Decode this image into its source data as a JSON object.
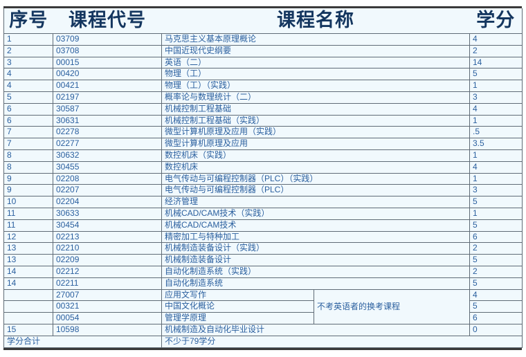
{
  "header": {
    "col_seq": "序号",
    "col_code": "课程代号",
    "col_name": "课程名称",
    "col_credit": "学分"
  },
  "rows": [
    {
      "seq": "1",
      "code": "03709",
      "name": "马克思主义基本原理概论",
      "credit": "4"
    },
    {
      "seq": "2",
      "code": "03708",
      "name": "中国近现代史纲要",
      "credit": "2"
    },
    {
      "seq": "3",
      "code": "00015",
      "name": "英语（二）",
      "credit": "14"
    },
    {
      "seq": "4",
      "code": "00420",
      "name": "物理（工）",
      "credit": "5"
    },
    {
      "seq": "4",
      "code": "00421",
      "name": "物理（工）（实践）",
      "credit": "1"
    },
    {
      "seq": "5",
      "code": "02197",
      "name": "概率论与数理统计（二）",
      "credit": "3"
    },
    {
      "seq": "6",
      "code": "30587",
      "name": "机械控制工程基础",
      "credit": "4"
    },
    {
      "seq": "6",
      "code": "30631",
      "name": "机械控制工程基础（实践）",
      "credit": "1"
    },
    {
      "seq": "7",
      "code": "02278",
      "name": "微型计算机原理及应用（实践）",
      "credit": ".5"
    },
    {
      "seq": "7",
      "code": "02277",
      "name": "微型计算机原理及应用",
      "credit": "3.5"
    },
    {
      "seq": "8",
      "code": "30632",
      "name": "数控机床（实践）",
      "credit": "1"
    },
    {
      "seq": "8",
      "code": "30455",
      "name": "数控机床",
      "credit": "4"
    },
    {
      "seq": "9",
      "code": "02208",
      "name": "电气传动与可编程控制器（PLC）（实践）",
      "credit": "1"
    },
    {
      "seq": "9",
      "code": "02207",
      "name": "电气传动与可编程控制器（PLC）",
      "credit": "3"
    },
    {
      "seq": "10",
      "code": "02204",
      "name": "经济管理",
      "credit": "5"
    },
    {
      "seq": "11",
      "code": "30633",
      "name": "机械CAD/CAM技术（实践）",
      "credit": "1"
    },
    {
      "seq": "11",
      "code": "30454",
      "name": "机械CAD/CAM技术",
      "credit": "5"
    },
    {
      "seq": "12",
      "code": "02213",
      "name": "精密加工与特种加工",
      "credit": "6"
    },
    {
      "seq": "13",
      "code": "02210",
      "name": "机械制造装备设计（实践）",
      "credit": "2"
    },
    {
      "seq": "13",
      "code": "02209",
      "name": "机械制造装备设计",
      "credit": "5"
    },
    {
      "seq": "14",
      "code": "02212",
      "name": "自动化制造系统（实践）",
      "credit": "2"
    },
    {
      "seq": "14",
      "code": "02211",
      "name": "自动化制造系统",
      "credit": "5"
    },
    {
      "seq": "",
      "code": "27007",
      "name": "应用文写作",
      "credit": "4",
      "group": "start"
    },
    {
      "seq": "",
      "code": "00321",
      "name": "中国文化概论",
      "credit": "5",
      "group": "mid"
    },
    {
      "seq": "",
      "code": "00054",
      "name": "管理学原理",
      "credit": "6",
      "group": "mid"
    },
    {
      "seq": "15",
      "code": "10598",
      "name": "机械制造及自动化毕业设计",
      "credit": "0"
    }
  ],
  "remark_group": {
    "label": "不考英语者的换考课程",
    "rowspan": 3
  },
  "total_row": {
    "label": "学分合计",
    "value": "不少于79学分"
  },
  "colors": {
    "header_text": "#14365f",
    "body_text": "#2a5f9e",
    "grid_border": "#5f6b76",
    "thick_border": "#3a3a3a",
    "table_background": "#f1f9fd"
  }
}
